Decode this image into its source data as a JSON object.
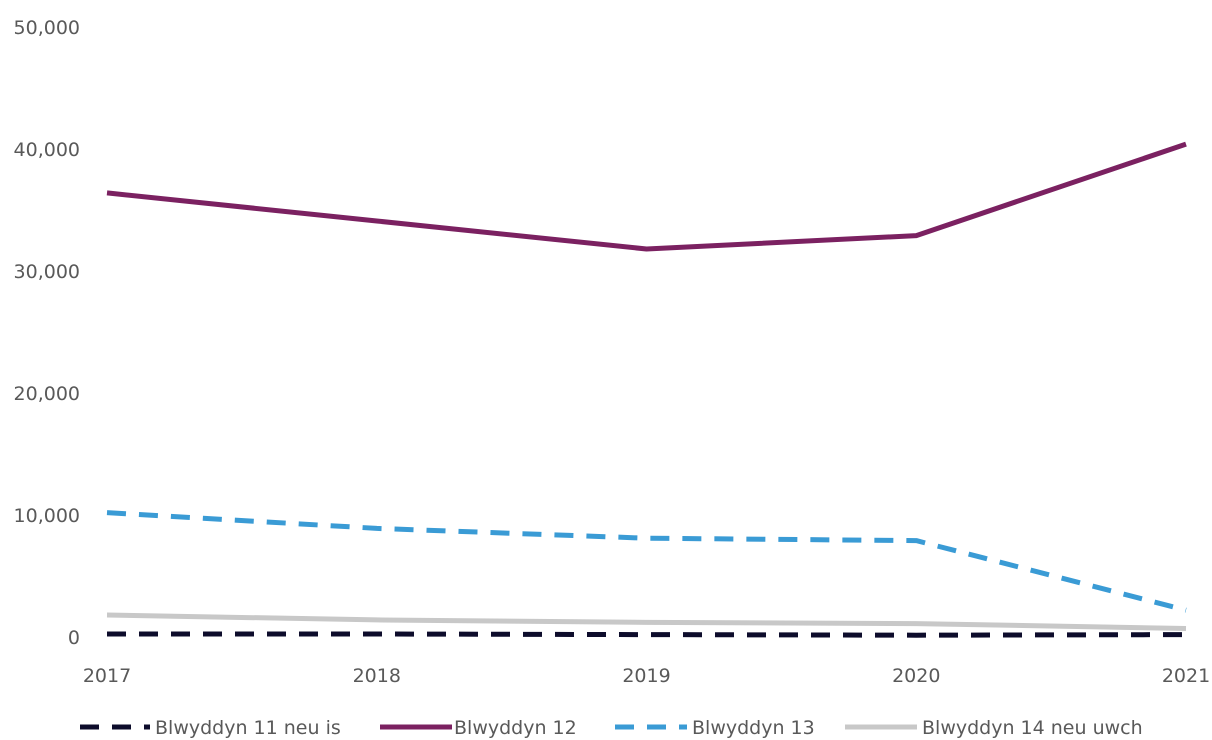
{
  "chart_data": {
    "type": "line",
    "title": "",
    "xlabel": "",
    "ylabel": "",
    "x": [
      "2017",
      "2018",
      "2019",
      "2020",
      "2021"
    ],
    "ylim": [
      0,
      50000
    ],
    "yticks": [
      0,
      10000,
      20000,
      30000,
      40000,
      50000
    ],
    "ytick_labels": [
      "0",
      "10,000",
      "20,000",
      "30,000",
      "40,000",
      "50,000"
    ],
    "grid": false,
    "legend_position": "bottom",
    "series": [
      {
        "name": "Blwyddyn 11 neu is",
        "values": [
          250,
          250,
          200,
          150,
          200
        ],
        "color": "#0d0c2b",
        "dash": "dashed"
      },
      {
        "name": "Blwyddyn 12",
        "values": [
          36400,
          34100,
          31800,
          32900,
          40400
        ],
        "color": "#7b2161",
        "dash": "solid"
      },
      {
        "name": "Blwyddyn 13",
        "values": [
          10200,
          8900,
          8100,
          7900,
          2200
        ],
        "color": "#3a9bd5",
        "dash": "dashed"
      },
      {
        "name": "Blwyddyn 14 neu uwch",
        "values": [
          1800,
          1400,
          1200,
          1100,
          700
        ],
        "color": "#c8c8c8",
        "dash": "solid"
      }
    ]
  }
}
